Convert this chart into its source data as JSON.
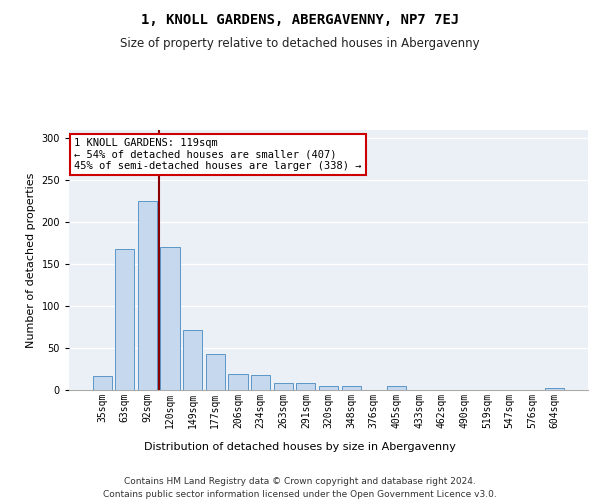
{
  "title": "1, KNOLL GARDENS, ABERGAVENNY, NP7 7EJ",
  "subtitle": "Size of property relative to detached houses in Abergavenny",
  "xlabel": "Distribution of detached houses by size in Abergavenny",
  "ylabel": "Number of detached properties",
  "categories": [
    "35sqm",
    "63sqm",
    "92sqm",
    "120sqm",
    "149sqm",
    "177sqm",
    "206sqm",
    "234sqm",
    "263sqm",
    "291sqm",
    "320sqm",
    "348sqm",
    "376sqm",
    "405sqm",
    "433sqm",
    "462sqm",
    "490sqm",
    "519sqm",
    "547sqm",
    "576sqm",
    "604sqm"
  ],
  "values": [
    17,
    168,
    225,
    170,
    72,
    43,
    19,
    18,
    8,
    8,
    5,
    5,
    0,
    5,
    0,
    0,
    0,
    0,
    0,
    0,
    2
  ],
  "bar_color": "#c5d8ed",
  "bar_edge_color": "#5a96c8",
  "vline_color": "#8b0000",
  "annotation_text": "1 KNOLL GARDENS: 119sqm\n← 54% of detached houses are smaller (407)\n45% of semi-detached houses are larger (338) →",
  "annotation_box_color": "#ffffff",
  "annotation_box_edge": "#cc0000",
  "footer": "Contains HM Land Registry data © Crown copyright and database right 2024.\nContains public sector information licensed under the Open Government Licence v3.0.",
  "ylim": [
    0,
    310
  ],
  "figsize": [
    6.0,
    5.0
  ],
  "dpi": 100,
  "bg_color": "#ffffff",
  "plot_bg_color": "#eaf0f6",
  "grid_color": "#ffffff",
  "title_fontsize": 10,
  "subtitle_fontsize": 8.5,
  "axis_label_fontsize": 8,
  "tick_fontsize": 7,
  "footer_fontsize": 6.5,
  "annotation_fontsize": 7.5
}
